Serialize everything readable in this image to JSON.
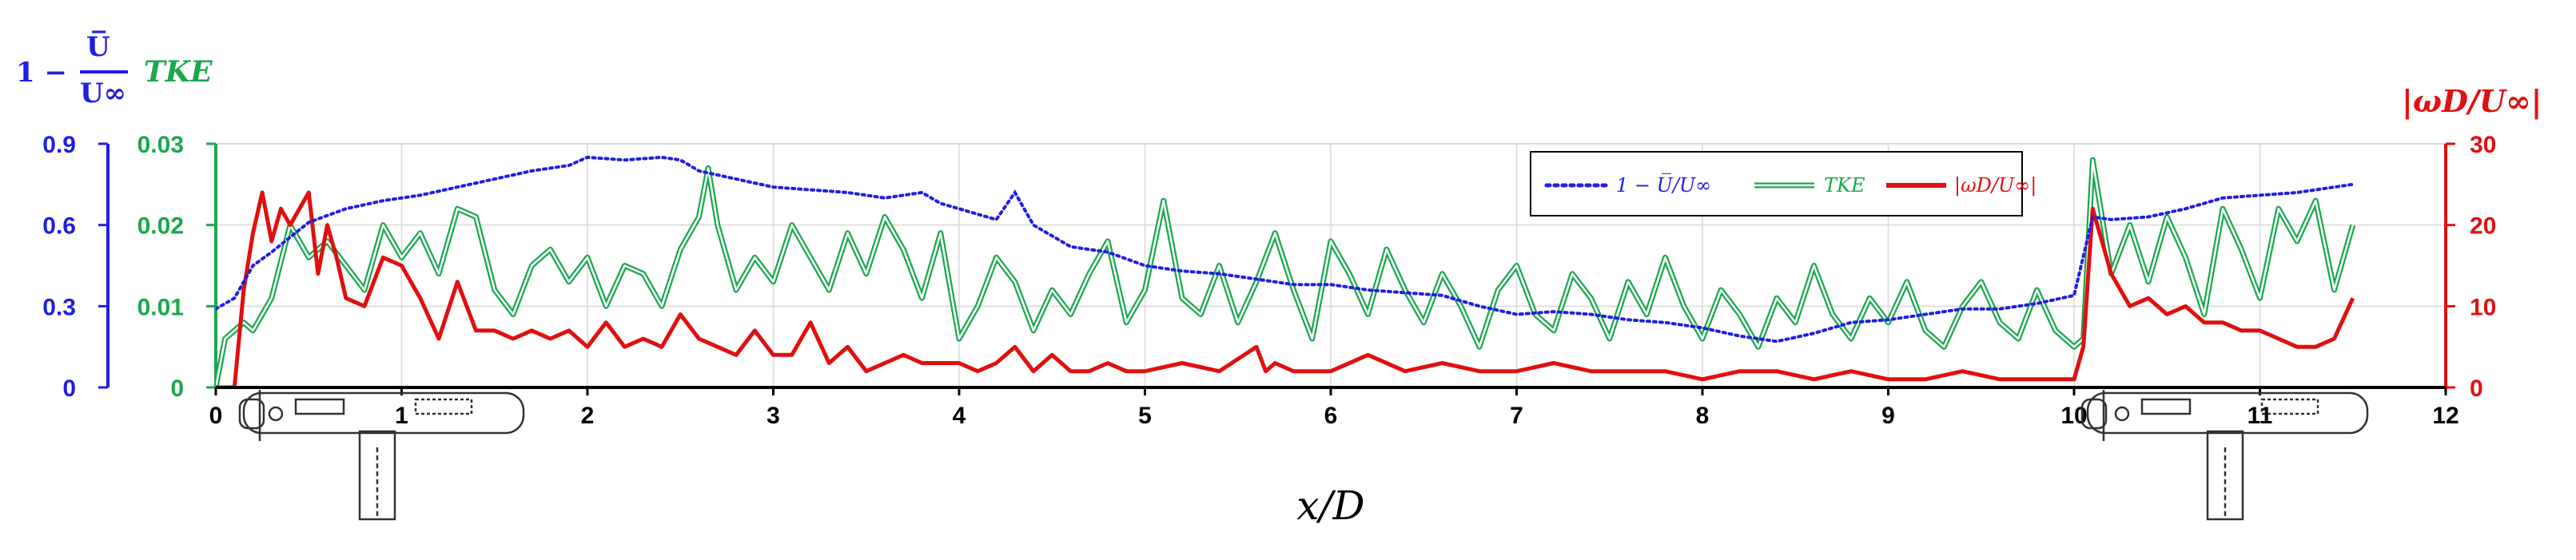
{
  "chart_data": {
    "type": "line",
    "xlabel": "x/D",
    "xlim": [
      0,
      12
    ],
    "x_ticks": [
      "0",
      "1",
      "2",
      "3",
      "4",
      "5",
      "6",
      "7",
      "8",
      "9",
      "10",
      "11",
      "12"
    ],
    "axes": {
      "left_outer": {
        "label_top": "1 − ",
        "label_frac_num": "U̅",
        "label_frac_den": "U∞",
        "ylim": [
          0,
          0.9
        ],
        "ticks": [
          "0",
          "0.3",
          "0.6",
          "0.9"
        ],
        "color": "#1f1fe0"
      },
      "left_inner": {
        "label": "TKE",
        "ylim": [
          0,
          0.03
        ],
        "ticks": [
          "0",
          "0.01",
          "0.02",
          "0.03"
        ],
        "color": "#1aa84f"
      },
      "right": {
        "label": "|ωD/U∞|",
        "ylim": [
          0,
          30
        ],
        "ticks": [
          "0",
          "10",
          "20",
          "30"
        ],
        "color": "#e01010"
      }
    },
    "legend": {
      "placement": "top-right",
      "entries": [
        "1 − U̅/U∞",
        "TKE",
        "|ωD/U∞|"
      ]
    },
    "grid": true,
    "series": [
      {
        "name": "1 − U̅/U∞",
        "axis": "left_outer",
        "style": "dotted",
        "color": "#1f1fe0",
        "x": [
          0.0,
          0.1,
          0.2,
          0.3,
          0.5,
          0.7,
          0.9,
          1.1,
          1.3,
          1.5,
          1.7,
          1.9,
          2.0,
          2.2,
          2.4,
          2.5,
          2.6,
          2.8,
          3.0,
          3.2,
          3.4,
          3.6,
          3.8,
          3.9,
          4.0,
          4.2,
          4.3,
          4.4,
          4.6,
          4.8,
          5.0,
          5.2,
          5.4,
          5.6,
          5.8,
          6.0,
          6.2,
          6.4,
          6.6,
          6.8,
          7.0,
          7.2,
          7.4,
          7.6,
          7.8,
          8.0,
          8.2,
          8.4,
          8.6,
          8.8,
          9.0,
          9.2,
          9.4,
          9.6,
          9.8,
          10.0,
          10.1,
          10.2,
          10.4,
          10.6,
          10.8,
          11.0,
          11.2,
          11.4,
          11.5
        ],
        "y": [
          0.29,
          0.33,
          0.45,
          0.5,
          0.61,
          0.66,
          0.69,
          0.71,
          0.74,
          0.77,
          0.8,
          0.82,
          0.85,
          0.84,
          0.85,
          0.84,
          0.8,
          0.77,
          0.74,
          0.73,
          0.72,
          0.7,
          0.72,
          0.68,
          0.66,
          0.62,
          0.72,
          0.6,
          0.52,
          0.5,
          0.45,
          0.43,
          0.42,
          0.4,
          0.38,
          0.38,
          0.36,
          0.35,
          0.34,
          0.3,
          0.27,
          0.28,
          0.27,
          0.25,
          0.24,
          0.22,
          0.19,
          0.17,
          0.2,
          0.24,
          0.25,
          0.27,
          0.29,
          0.29,
          0.31,
          0.34,
          0.63,
          0.62,
          0.63,
          0.66,
          0.7,
          0.71,
          0.72,
          0.74,
          0.75
        ]
      },
      {
        "name": "TKE",
        "axis": "left_inner",
        "style": "double",
        "color": "#1aa84f",
        "x": [
          0.0,
          0.05,
          0.15,
          0.2,
          0.3,
          0.4,
          0.5,
          0.6,
          0.7,
          0.8,
          0.9,
          1.0,
          1.1,
          1.2,
          1.3,
          1.4,
          1.5,
          1.6,
          1.7,
          1.8,
          1.9,
          2.0,
          2.1,
          2.2,
          2.3,
          2.4,
          2.5,
          2.6,
          2.65,
          2.7,
          2.8,
          2.9,
          3.0,
          3.1,
          3.2,
          3.3,
          3.4,
          3.5,
          3.6,
          3.7,
          3.8,
          3.9,
          4.0,
          4.1,
          4.2,
          4.3,
          4.4,
          4.5,
          4.6,
          4.7,
          4.8,
          4.9,
          5.0,
          5.1,
          5.2,
          5.3,
          5.4,
          5.5,
          5.6,
          5.7,
          5.8,
          5.9,
          6.0,
          6.1,
          6.2,
          6.3,
          6.4,
          6.5,
          6.6,
          6.7,
          6.8,
          6.9,
          7.0,
          7.1,
          7.2,
          7.3,
          7.4,
          7.5,
          7.6,
          7.7,
          7.8,
          7.9,
          8.0,
          8.1,
          8.2,
          8.3,
          8.4,
          8.5,
          8.6,
          8.7,
          8.8,
          8.9,
          9.0,
          9.1,
          9.2,
          9.3,
          9.4,
          9.5,
          9.6,
          9.7,
          9.8,
          9.9,
          10.0,
          10.05,
          10.1,
          10.2,
          10.3,
          10.4,
          10.5,
          10.6,
          10.7,
          10.8,
          10.9,
          11.0,
          11.1,
          11.2,
          11.3,
          11.4,
          11.5
        ],
        "y": [
          0.0,
          0.006,
          0.008,
          0.007,
          0.011,
          0.02,
          0.016,
          0.018,
          0.015,
          0.012,
          0.02,
          0.016,
          0.019,
          0.014,
          0.022,
          0.021,
          0.012,
          0.009,
          0.015,
          0.017,
          0.013,
          0.016,
          0.01,
          0.015,
          0.014,
          0.01,
          0.017,
          0.021,
          0.027,
          0.02,
          0.012,
          0.016,
          0.013,
          0.02,
          0.016,
          0.012,
          0.019,
          0.014,
          0.021,
          0.017,
          0.011,
          0.019,
          0.006,
          0.01,
          0.016,
          0.013,
          0.007,
          0.012,
          0.009,
          0.014,
          0.018,
          0.008,
          0.012,
          0.023,
          0.011,
          0.009,
          0.015,
          0.008,
          0.013,
          0.019,
          0.012,
          0.006,
          0.018,
          0.014,
          0.009,
          0.017,
          0.012,
          0.008,
          0.014,
          0.01,
          0.005,
          0.012,
          0.015,
          0.009,
          0.007,
          0.014,
          0.011,
          0.006,
          0.013,
          0.009,
          0.016,
          0.01,
          0.006,
          0.012,
          0.009,
          0.005,
          0.011,
          0.008,
          0.015,
          0.009,
          0.006,
          0.011,
          0.008,
          0.013,
          0.007,
          0.005,
          0.01,
          0.013,
          0.008,
          0.006,
          0.012,
          0.007,
          0.005,
          0.006,
          0.028,
          0.014,
          0.02,
          0.013,
          0.021,
          0.016,
          0.009,
          0.022,
          0.017,
          0.011,
          0.022,
          0.018,
          0.023,
          0.012,
          0.02
        ]
      },
      {
        "name": "|ωD/U∞|",
        "axis": "right",
        "style": "solid",
        "color": "#e01010",
        "x": [
          0.0,
          0.1,
          0.15,
          0.2,
          0.25,
          0.3,
          0.35,
          0.4,
          0.5,
          0.55,
          0.6,
          0.65,
          0.7,
          0.8,
          0.9,
          1.0,
          1.1,
          1.2,
          1.3,
          1.4,
          1.5,
          1.6,
          1.7,
          1.8,
          1.9,
          2.0,
          2.1,
          2.2,
          2.3,
          2.4,
          2.5,
          2.6,
          2.7,
          2.8,
          2.9,
          3.0,
          3.1,
          3.2,
          3.3,
          3.4,
          3.5,
          3.6,
          3.7,
          3.8,
          3.9,
          4.0,
          4.1,
          4.2,
          4.3,
          4.4,
          4.5,
          4.6,
          4.7,
          4.8,
          4.9,
          5.0,
          5.2,
          5.4,
          5.6,
          5.65,
          5.7,
          5.8,
          6.0,
          6.2,
          6.4,
          6.6,
          6.8,
          7.0,
          7.2,
          7.4,
          7.6,
          7.8,
          8.0,
          8.2,
          8.4,
          8.6,
          8.8,
          9.0,
          9.2,
          9.4,
          9.6,
          9.8,
          10.0,
          10.05,
          10.1,
          10.15,
          10.2,
          10.3,
          10.4,
          10.5,
          10.6,
          10.7,
          10.8,
          10.9,
          11.0,
          11.1,
          11.2,
          11.3,
          11.4,
          11.5
        ],
        "y": [
          0.0,
          0.0,
          12,
          19,
          24,
          18,
          22,
          20,
          24,
          14,
          20,
          16,
          11,
          10,
          16,
          15,
          11,
          6,
          13,
          7,
          7,
          6,
          7,
          6,
          7,
          5,
          8,
          5,
          6,
          5,
          9,
          6,
          5,
          4,
          7,
          4,
          4,
          8,
          3,
          5,
          2,
          3,
          4,
          3,
          3,
          3,
          2,
          3,
          5,
          2,
          4,
          2,
          2,
          3,
          2,
          2,
          3,
          2,
          5,
          2,
          3,
          2,
          2,
          4,
          2,
          3,
          2,
          2,
          3,
          2,
          2,
          2,
          1,
          2,
          2,
          1,
          2,
          1,
          1,
          2,
          1,
          1,
          1,
          5,
          22,
          18,
          14,
          10,
          11,
          9,
          10,
          8,
          8,
          7,
          7,
          6,
          5,
          5,
          6,
          11
        ]
      }
    ]
  }
}
